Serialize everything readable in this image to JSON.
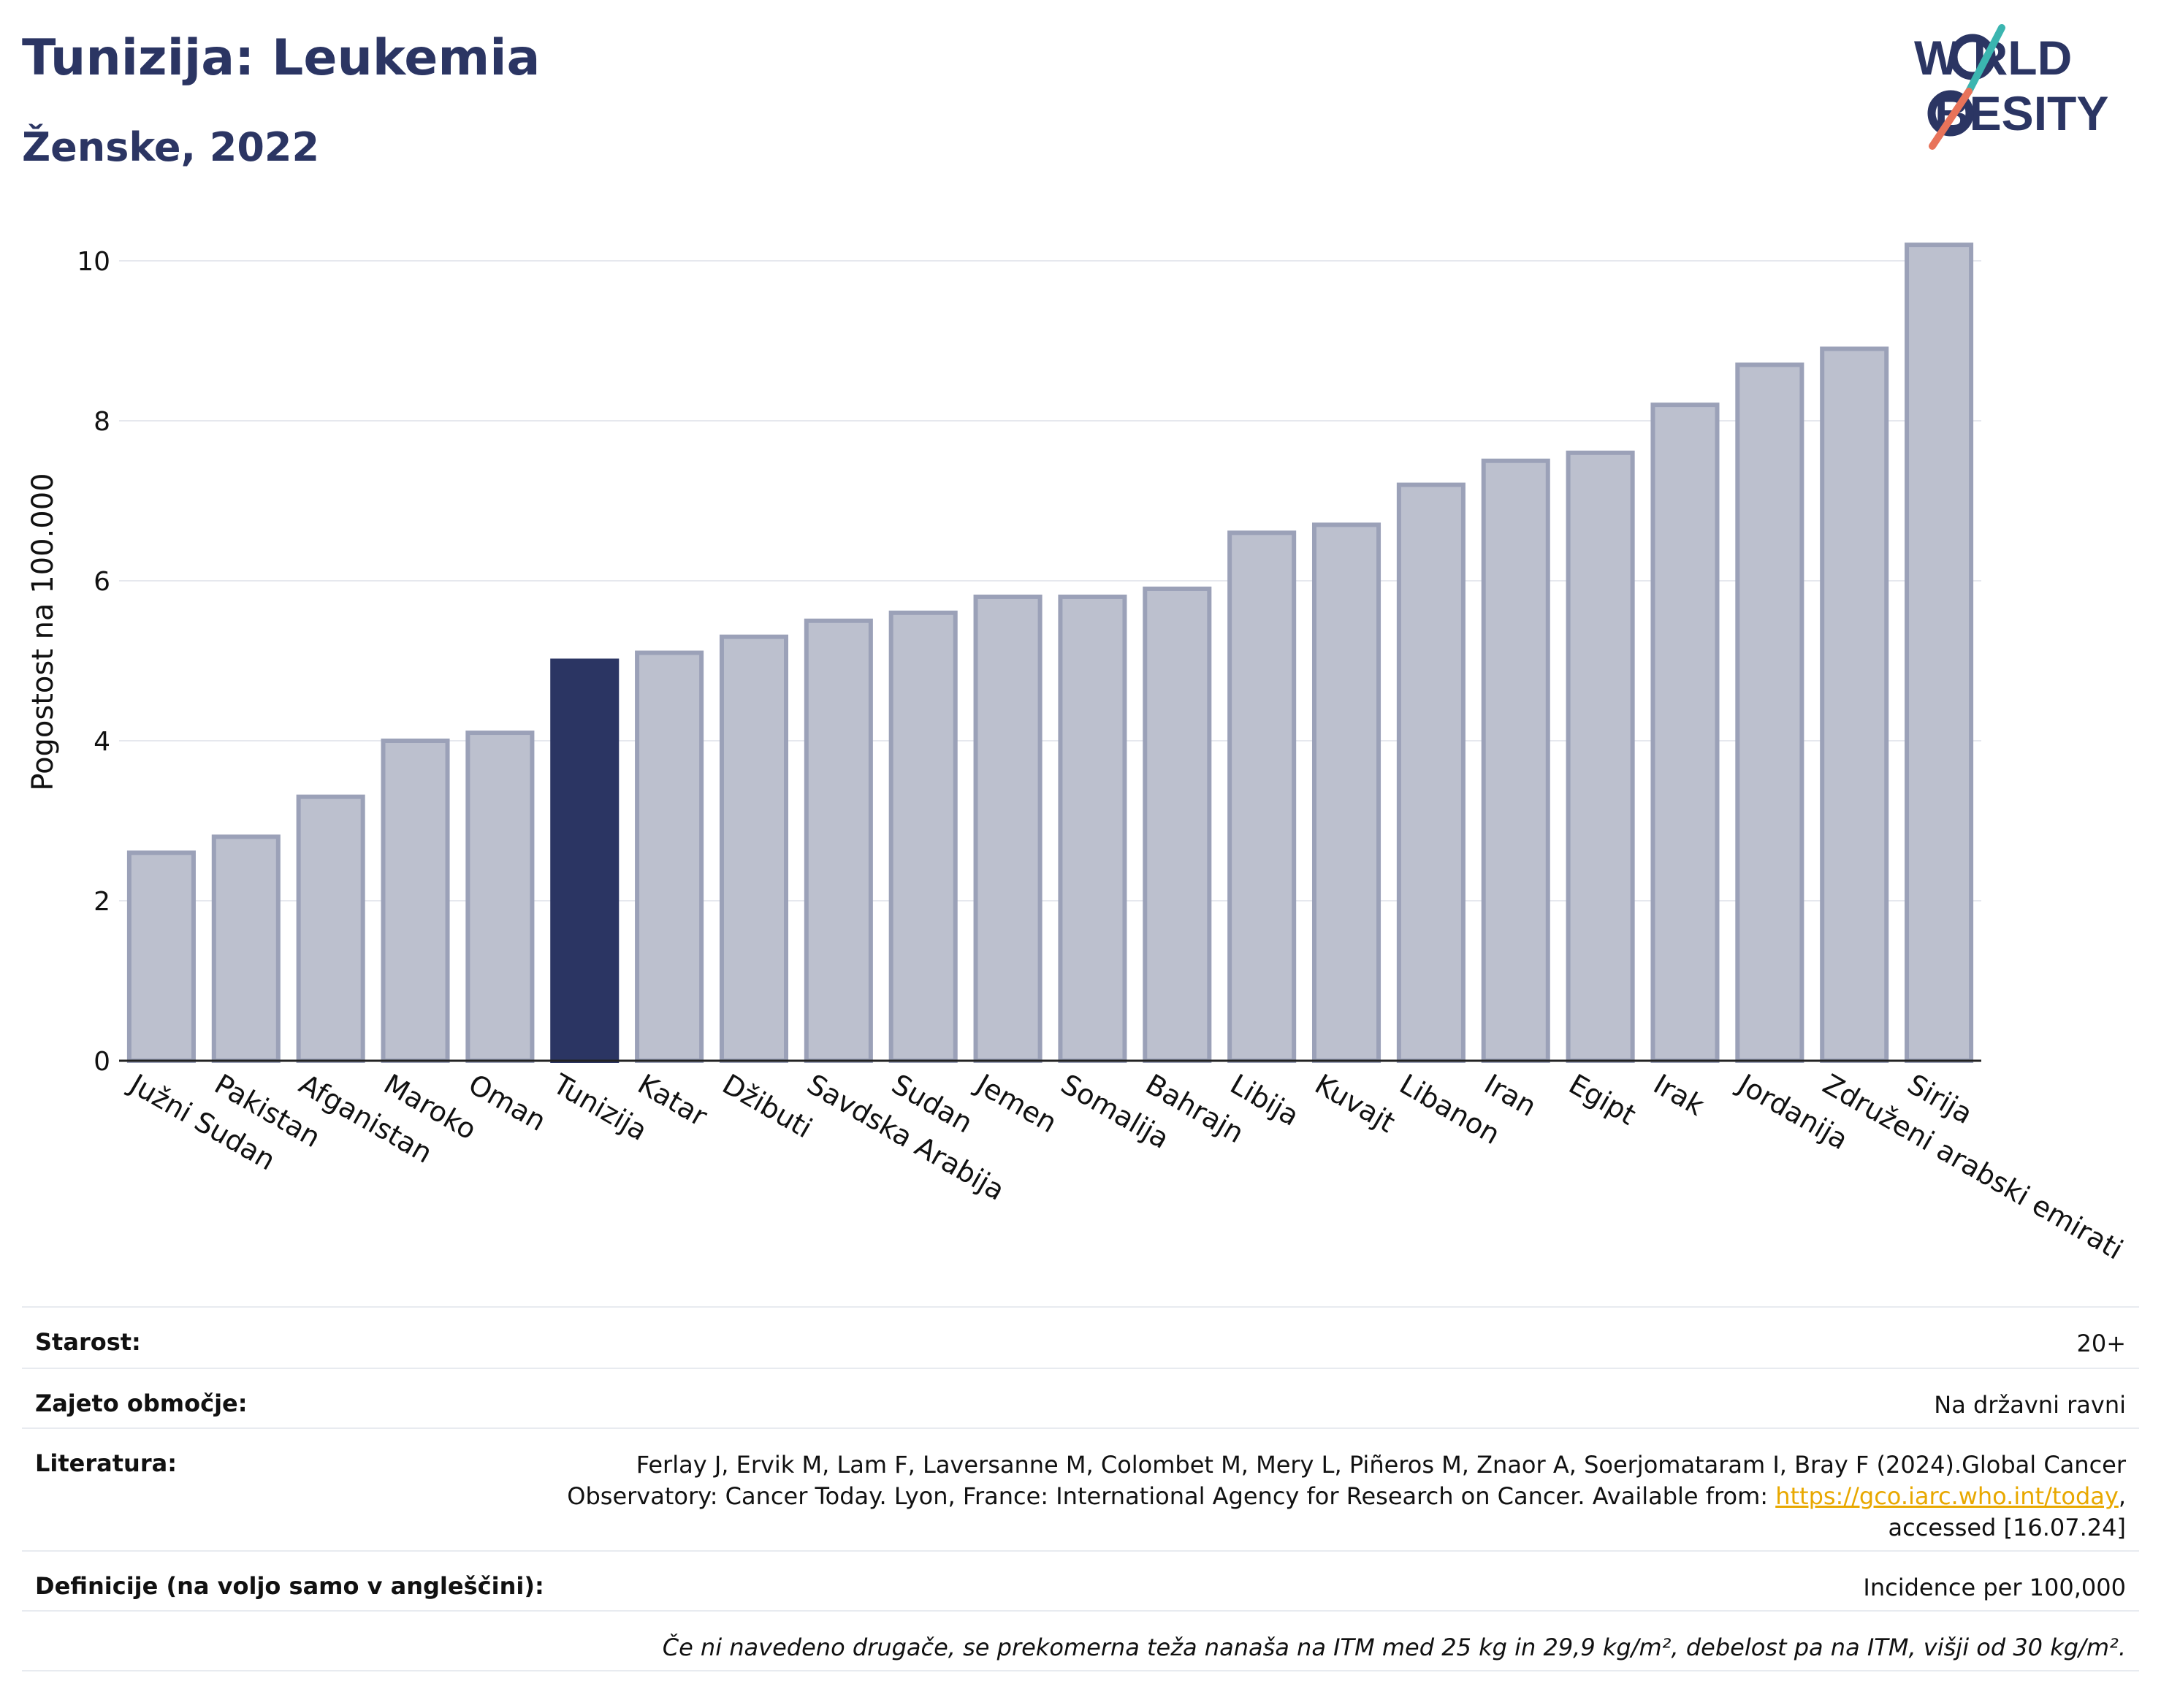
{
  "header": {
    "title": "Tunizija: Leukemia",
    "subtitle": "Ženske, 2022"
  },
  "logo": {
    "line1": "W RLD",
    "line2": "BESITY",
    "text": "WORLD OBESITY"
  },
  "colors": {
    "bar": "#bcc0ce",
    "bar_border": "#9ba1b8",
    "highlight": "#2b3563",
    "title": "#2b3563",
    "grid": "#e6e8ee",
    "link": "#e8a800",
    "logo_teal": "#3bb5b0",
    "logo_coral": "#e8735a"
  },
  "chart_data": {
    "type": "bar",
    "ylabel": "Pogostost na 100.000",
    "ylim": [
      0,
      10.6
    ],
    "yticks": [
      0,
      2,
      4,
      6,
      8,
      10
    ],
    "grid": true,
    "highlight": "Tunizija",
    "categories": [
      "Južni Sudan",
      "Pakistan",
      "Afganistan",
      "Maroko",
      "Oman",
      "Tunizija",
      "Katar",
      "Džibuti",
      "Savdska Arabija",
      "Sudan",
      "Jemen",
      "Somalija",
      "Bahrajn",
      "Libija",
      "Kuvajt",
      "Libanon",
      "Iran",
      "Egipt",
      "Irak",
      "Jordanija",
      "Združeni arabski emirati",
      "Sirija"
    ],
    "values": [
      2.6,
      2.8,
      3.3,
      4.0,
      4.1,
      5.0,
      5.1,
      5.3,
      5.5,
      5.6,
      5.8,
      5.8,
      5.9,
      6.6,
      6.7,
      7.2,
      7.5,
      7.6,
      8.2,
      8.7,
      8.9,
      10.2
    ]
  },
  "info": {
    "age_label": "Starost:",
    "age_value": "20+",
    "coverage_label": "Zajeto območje:",
    "coverage_value": "Na državni ravni",
    "literature_label": "Literatura:",
    "literature_text1": "Ferlay J, Ervik M, Lam F, Laversanne M, Colombet M, Mery L, Piñeros M, Znaor A, Soerjomataram I, Bray F (2024).Global Cancer Observatory: Cancer Today. Lyon, France: International Agency for Research on Cancer. Available from: ",
    "literature_link": "https://gco.iarc.who.int/today",
    "literature_text2": ", accessed [16.07.24]",
    "definitions_label": "Definicije (na voljo samo v angleščini):",
    "definitions_value": "Incidence per 100,000",
    "note": "Če ni navedeno drugače, se prekomerna teža nanaša na ITM med 25 kg in 29,9 kg/m², debelost pa na ITM, višji od 30 kg/m²."
  }
}
